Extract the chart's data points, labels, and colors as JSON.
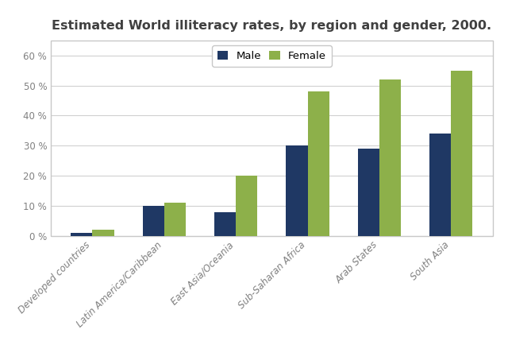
{
  "title": "Estimated World illiteracy rates, by region and gender, 2000.",
  "categories": [
    "Developed countries",
    "Latin America/Caribbean",
    "East Asia/Oceania",
    "Sub-Saharan Africa",
    "Arab States",
    "South Asia"
  ],
  "male_values": [
    1,
    10,
    8,
    30,
    29,
    34
  ],
  "female_values": [
    2,
    11,
    20,
    48,
    52,
    55
  ],
  "male_color": "#1f3864",
  "female_color": "#8db04a",
  "ylim": [
    0,
    65
  ],
  "yticks": [
    0,
    10,
    20,
    30,
    40,
    50,
    60
  ],
  "legend_labels": [
    "Male",
    "Female"
  ],
  "background_color": "#ffffff",
  "plot_bg_color": "#ffffff",
  "bar_width": 0.3,
  "title_fontsize": 11.5,
  "tick_label_fontsize": 8.5,
  "legend_fontsize": 9.5,
  "title_color": "#404040",
  "tick_color": "#808080"
}
